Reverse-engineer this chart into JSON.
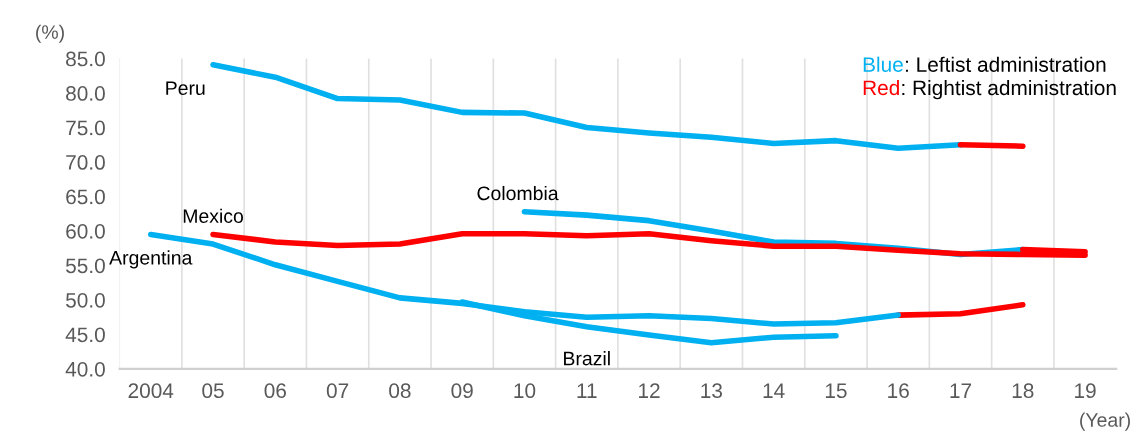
{
  "chart_data": {
    "type": "line",
    "xlabel": "(Year)",
    "ylabel": "(%)",
    "categories": [
      "2004",
      "05",
      "06",
      "07",
      "08",
      "09",
      "10",
      "11",
      "12",
      "13",
      "14",
      "15",
      "16",
      "17",
      "18",
      "19"
    ],
    "ylim": [
      40,
      85
    ],
    "yticks": [
      {
        "value": 40,
        "label": "40.0"
      },
      {
        "value": 45,
        "label": "45.0"
      },
      {
        "value": 50,
        "label": "50.0"
      },
      {
        "value": 55,
        "label": "55.0"
      },
      {
        "value": 60,
        "label": "60.0"
      },
      {
        "value": 65,
        "label": "65.0"
      },
      {
        "value": 70,
        "label": "70.0"
      },
      {
        "value": 75,
        "label": "75.0"
      },
      {
        "value": 80,
        "label": "80.0"
      },
      {
        "value": 85,
        "label": "85.0"
      }
    ],
    "grid": "x",
    "legend": false,
    "marker": "none",
    "line_style": "solid",
    "series": [
      {
        "name": "Peru",
        "color": "#00b0f0",
        "values": [
          null,
          84.1,
          82.3,
          79.2,
          79.0,
          77.2,
          77.1,
          75.0,
          74.2,
          73.6,
          72.7,
          73.1,
          72.0,
          72.5,
          null,
          null
        ]
      },
      {
        "color": "#ff0000",
        "values": [
          null,
          null,
          null,
          null,
          null,
          null,
          null,
          null,
          null,
          null,
          null,
          null,
          null,
          72.5,
          72.3,
          null
        ]
      },
      {
        "name": "Colombia",
        "color": "#00b0f0",
        "values": [
          null,
          null,
          null,
          null,
          null,
          null,
          62.8,
          62.3,
          61.5,
          60.0,
          58.4,
          58.2,
          57.5,
          56.6,
          57.3,
          null
        ]
      },
      {
        "color": "#ff0000",
        "values": [
          null,
          null,
          null,
          null,
          null,
          null,
          null,
          null,
          null,
          null,
          null,
          null,
          null,
          null,
          57.3,
          57.0
        ]
      },
      {
        "name": "Mexico",
        "color": "#ff0000",
        "values": [
          null,
          59.5,
          58.4,
          57.9,
          58.1,
          59.6,
          59.6,
          59.3,
          59.6,
          58.6,
          57.8,
          57.8,
          57.2,
          56.7,
          56.6,
          56.5
        ]
      },
      {
        "name": "Argentina",
        "color": "#00b0f0",
        "values": [
          59.5,
          58.1,
          55.1,
          52.7,
          50.3,
          49.5,
          48.3,
          47.5,
          47.7,
          47.3,
          46.5,
          46.7,
          47.8,
          null,
          null,
          null
        ]
      },
      {
        "color": "#ff0000",
        "values": [
          null,
          null,
          null,
          null,
          null,
          null,
          null,
          null,
          null,
          null,
          null,
          null,
          47.8,
          48.0,
          49.3,
          null
        ]
      },
      {
        "name": "Brazil",
        "color": "#00b0f0",
        "values": [
          null,
          null,
          null,
          null,
          null,
          49.7,
          47.7,
          46.1,
          44.9,
          43.8,
          44.6,
          44.8,
          null,
          null,
          null,
          null
        ]
      }
    ],
    "annotations": [
      "Blue: Leftist administration",
      "Red: Rightist administration"
    ]
  }
}
